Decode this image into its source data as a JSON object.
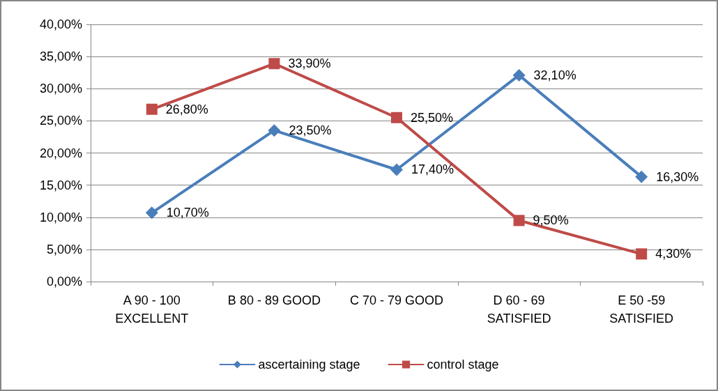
{
  "chart_data": {
    "type": "line",
    "categories": [
      "A 90 - 100\nEXCELLENT",
      "B 80 - 89 GOOD",
      "C 70 - 79 GOOD",
      "D 60 - 69\nSATISFIED",
      "E 50 -59\nSATISFIED"
    ],
    "series": [
      {
        "name": "ascertaining stage",
        "color": "#4a7ebb",
        "marker": "diamond",
        "values": [
          10.7,
          23.5,
          17.4,
          32.1,
          16.3
        ],
        "value_labels": [
          "10,70%",
          "23,50%",
          "17,40%",
          "32,10%",
          "16,30%"
        ]
      },
      {
        "name": "control stage",
        "color": "#be4b48",
        "marker": "square",
        "values": [
          26.8,
          33.9,
          25.5,
          9.5,
          4.3
        ],
        "value_labels": [
          "26,80%",
          "33,90%",
          "25,50%",
          "9,50%",
          "4,30%"
        ]
      }
    ],
    "ylim": [
      0,
      40
    ],
    "yticks": [
      {
        "value": 0,
        "label": "0,00%"
      },
      {
        "value": 5,
        "label": "5,00%"
      },
      {
        "value": 10,
        "label": "10,00%"
      },
      {
        "value": 15,
        "label": "15,00%"
      },
      {
        "value": 20,
        "label": "20,00%"
      },
      {
        "value": 25,
        "label": "25,00%"
      },
      {
        "value": 30,
        "label": "30,00%"
      },
      {
        "value": 35,
        "label": "35,00%"
      },
      {
        "value": 40,
        "label": "40,00%"
      }
    ],
    "grid": "y",
    "legend": "bottom",
    "line_style": "solid"
  }
}
